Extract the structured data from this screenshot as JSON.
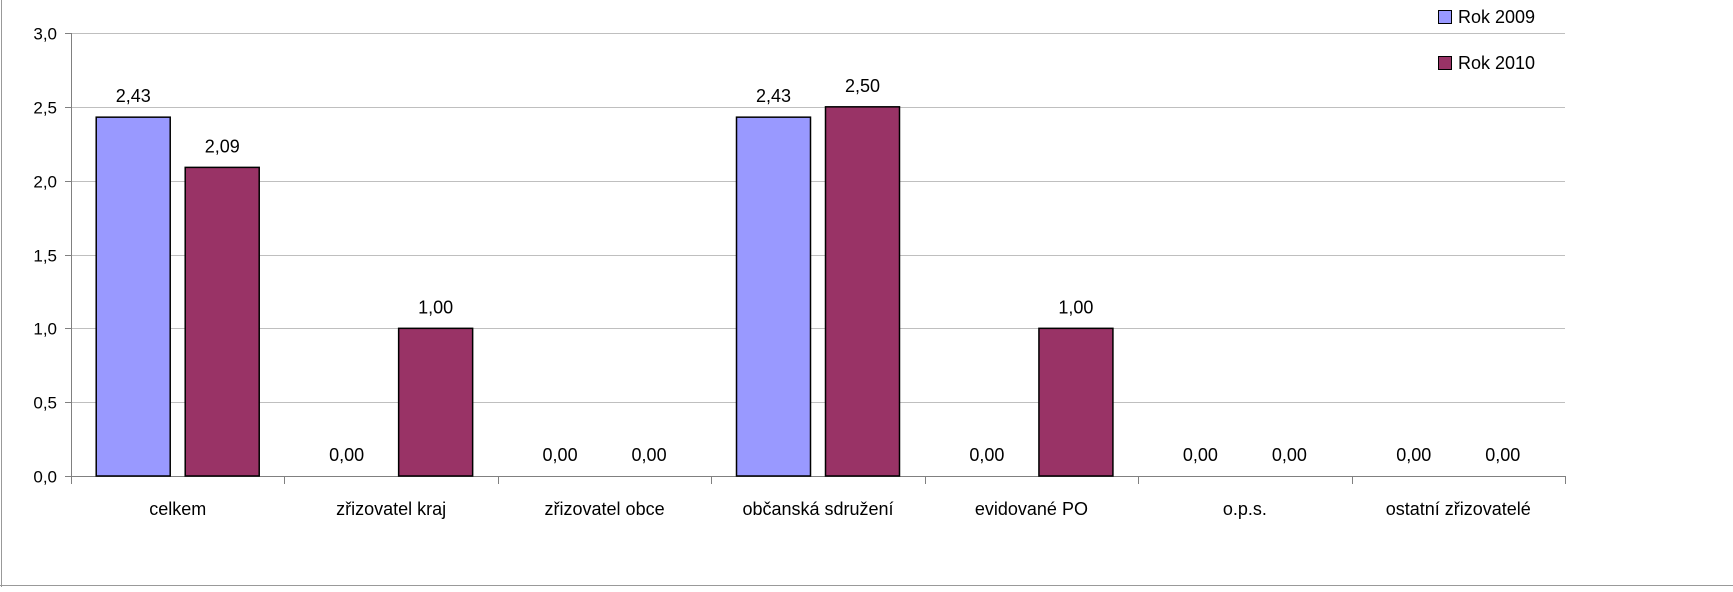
{
  "chart_data": {
    "type": "bar",
    "title": "",
    "xlabel": "",
    "ylabel": "",
    "ylim": [
      0,
      3
    ],
    "yticks": [
      "0,0",
      "0,5",
      "1,0",
      "1,5",
      "2,0",
      "2,5",
      "3,0"
    ],
    "grid": true,
    "legend_position": "top-right",
    "categories": [
      "celkem",
      "zřizovatel kraj",
      "zřizovatel obce",
      "občanská sdružení",
      "evidované PO",
      "o.p.s.",
      "ostatní zřizovatelé"
    ],
    "series": [
      {
        "name": "Rok 2009",
        "color": "#9999FF",
        "values": [
          2.43,
          0.0,
          0.0,
          2.43,
          0.0,
          0.0,
          0.0
        ],
        "labels": [
          "2,43",
          "0,00",
          "0,00",
          "2,43",
          "0,00",
          "0,00",
          "0,00"
        ]
      },
      {
        "name": "Rok 2010",
        "color": "#993366",
        "values": [
          2.09,
          1.0,
          0.0,
          2.5,
          1.0,
          0.0,
          0.0
        ],
        "labels": [
          "2,09",
          "1,00",
          "0,00",
          "2,50",
          "1,00",
          "0,00",
          "0,00"
        ]
      }
    ]
  }
}
